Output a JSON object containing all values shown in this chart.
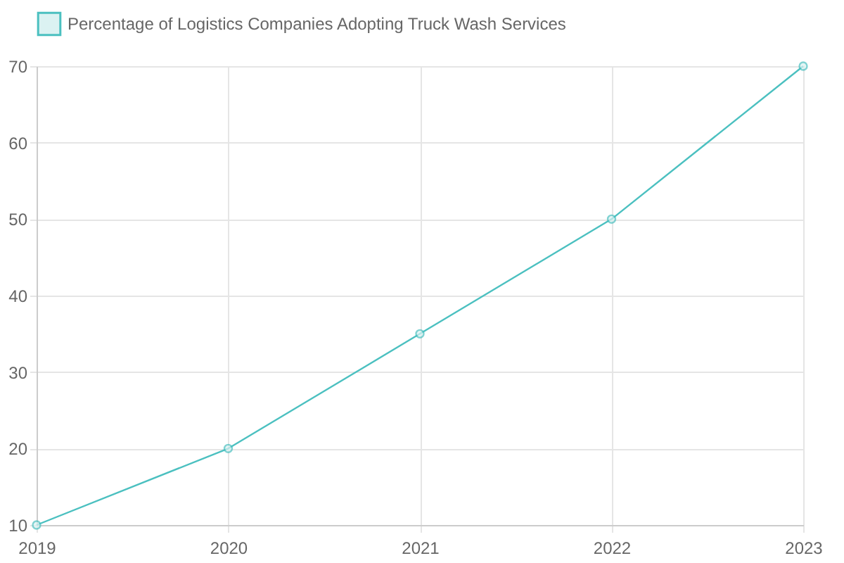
{
  "chart_data": {
    "type": "line",
    "categories": [
      "2019",
      "2020",
      "2021",
      "2022",
      "2023"
    ],
    "series": [
      {
        "name": "Percentage of Logistics Companies Adopting Truck Wash Services",
        "color": "#4bc0c0",
        "values": [
          10,
          20,
          35,
          50,
          70
        ]
      }
    ],
    "ylim": [
      10,
      70
    ],
    "yticks": [
      10,
      20,
      30,
      40,
      50,
      60,
      70
    ],
    "grid": true,
    "legend": "top",
    "marker": "circle"
  }
}
